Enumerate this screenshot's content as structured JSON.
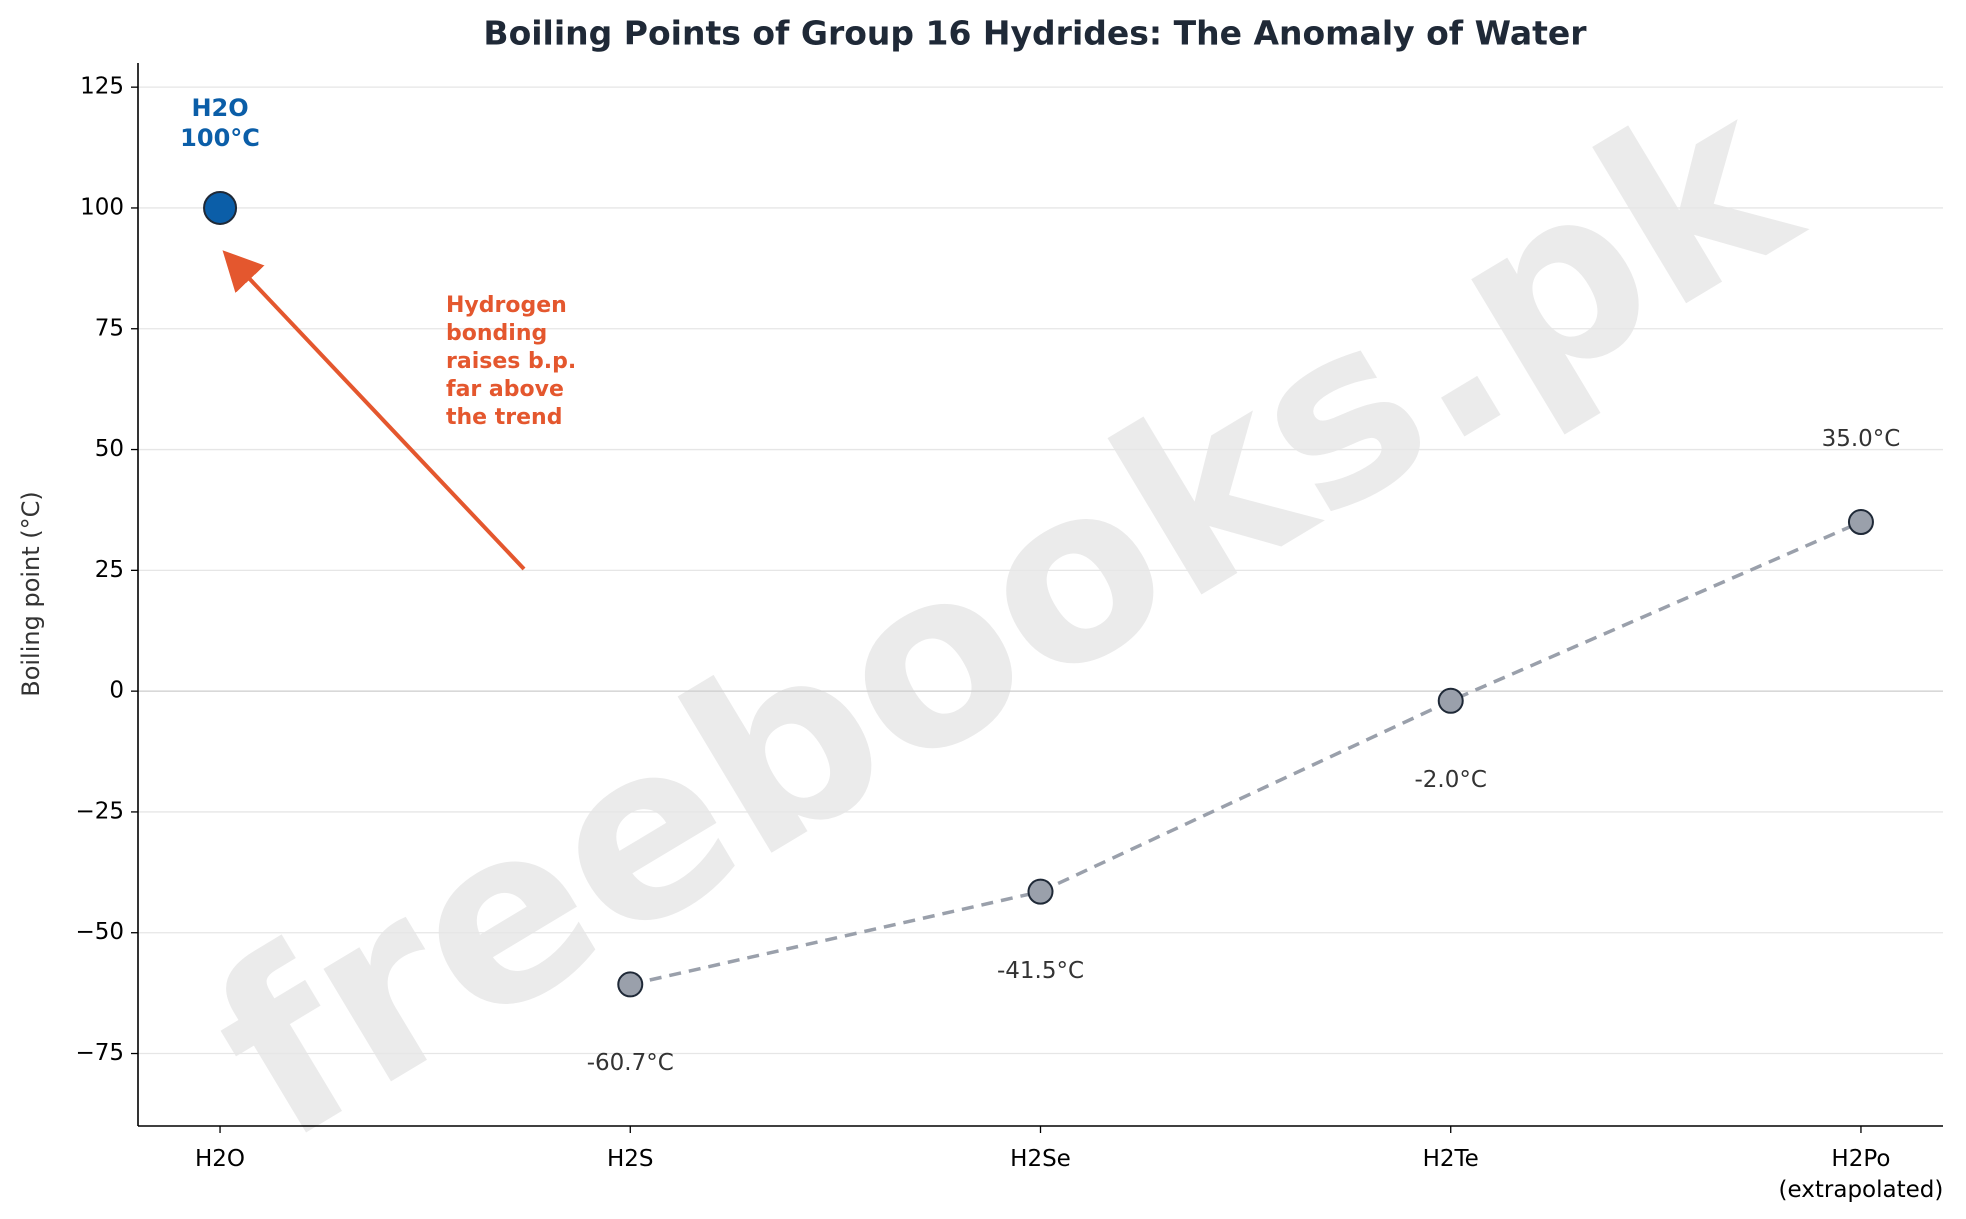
{
  "chart_data": {
    "type": "line",
    "title": "Boiling Points of Group 16 Hydrides: The Anomaly of Water",
    "y_label": "Boiling point (°C)",
    "categories": [
      "H2O",
      "H2S",
      "H2Se",
      "H2Te",
      "H2Po\n(extrapolated)"
    ],
    "series": [
      {
        "color": "#0b5ea8",
        "values": [
          100,
          null,
          null,
          null,
          null
        ],
        "value_labels": [
          "100°C",
          null,
          null,
          null,
          null
        ]
      },
      {
        "color": "#9aa0ab",
        "line_style": "dashed",
        "values": [
          null,
          -60.7,
          -41.5,
          -2.0,
          35.0
        ],
        "value_labels": [
          null,
          "-60.7°C",
          "-41.5°C",
          "-2.0°C",
          "35.0°C"
        ]
      }
    ],
    "ylim": [
      -90,
      130
    ],
    "yticks": [
      {
        "value": -75,
        "label": "−75"
      },
      {
        "value": -50,
        "label": "−50"
      },
      {
        "value": -25,
        "label": "−25"
      },
      0,
      25,
      50,
      75,
      100,
      125
    ],
    "grid": true,
    "annotation": {
      "text": "Hydrogen\nbonding\nraises b.p.\nfar above\nthe trend",
      "color": "#e4572e"
    },
    "watermark": "freebooks.pk"
  }
}
